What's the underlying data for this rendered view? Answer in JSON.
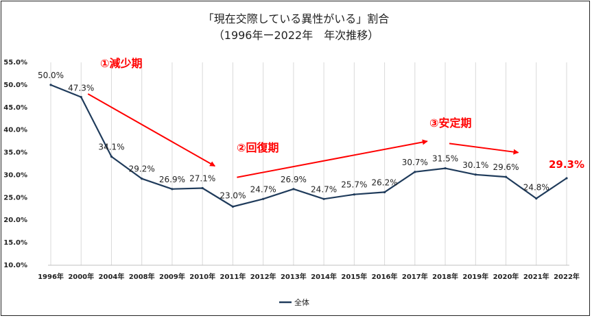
{
  "header": {
    "title": "「現在交際している異性がいる」割合",
    "subtitle": "（1996年ー2022年　年次推移）"
  },
  "chart_data": {
    "type": "line",
    "title": "「現在交際している異性がいる」割合",
    "subtitle": "（1996年ー2022年　年次推移）",
    "categories": [
      "1996年",
      "2000年",
      "2004年",
      "2008年",
      "2009年",
      "2010年",
      "2011年",
      "2012年",
      "2013年",
      "2014年",
      "2015年",
      "2016年",
      "2017年",
      "2018年",
      "2019年",
      "2020年",
      "2021年",
      "2022年"
    ],
    "series": [
      {
        "name": "全体",
        "values": [
          50.0,
          47.3,
          34.1,
          29.2,
          26.9,
          27.1,
          23.0,
          24.7,
          26.9,
          24.7,
          25.7,
          26.2,
          30.7,
          31.5,
          30.1,
          29.6,
          24.8,
          29.3
        ]
      }
    ],
    "data_labels": [
      "50.0%",
      "47.3%",
      "34.1%",
      "29.2%",
      "26.9%",
      "27.1%",
      "23.0%",
      "24.7%",
      "26.9%",
      "24.7%",
      "25.7%",
      "26.2%",
      "30.7%",
      "31.5%",
      "30.1%",
      "29.6%",
      "24.8%",
      "29.3%"
    ],
    "y_ticks": [
      "10.0%",
      "15.0%",
      "20.0%",
      "25.0%",
      "30.0%",
      "35.0%",
      "40.0%",
      "45.0%",
      "50.0%",
      "55.0%"
    ],
    "ylim": [
      10,
      55
    ],
    "grid": "vertical",
    "legend": "bottom",
    "line_color": "#1f3b5b",
    "annotation_color": "#ff0000",
    "annotations": [
      {
        "text": "①減少期",
        "from_category": "2000年",
        "from_value": 48.0,
        "to_category": "2010年",
        "to_value": 32.0
      },
      {
        "text": "②回復期",
        "from_category": "2011年",
        "from_value": 29.5,
        "to_category": "2017年",
        "to_value": 37.5
      },
      {
        "text": "③安定期",
        "from_category": "2018年",
        "from_value": 37.0,
        "to_category": "2020年",
        "to_value": 35.0
      }
    ]
  }
}
